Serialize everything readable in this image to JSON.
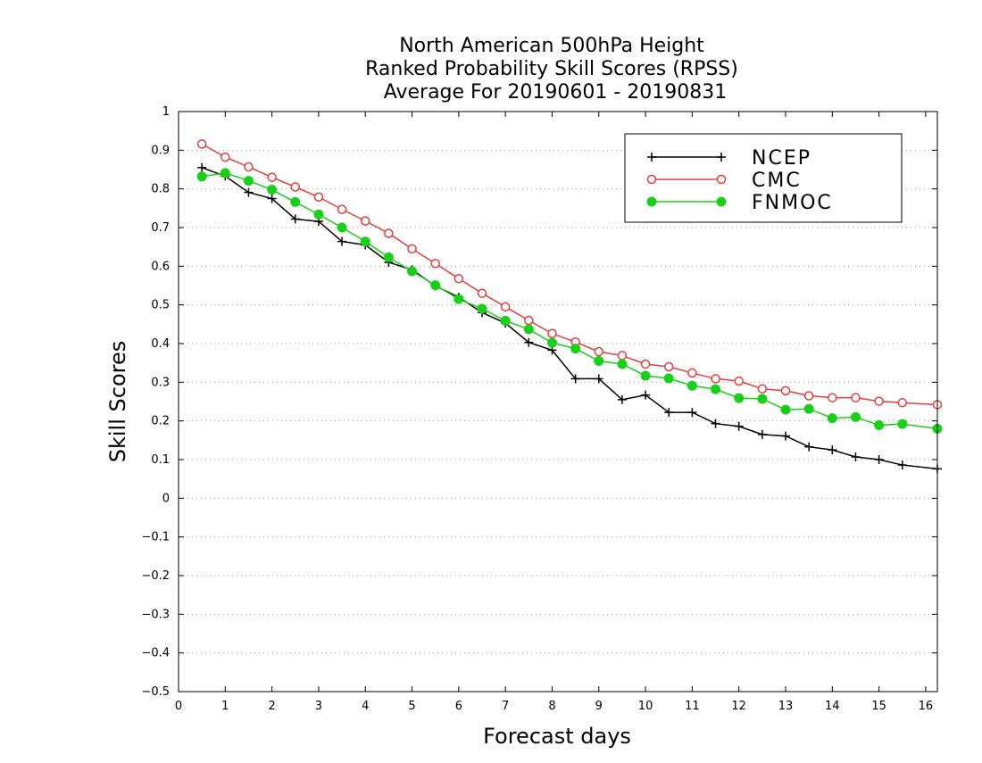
{
  "chart_data": {
    "type": "line",
    "title_lines": [
      "North American 500hPa Height",
      "Ranked Probability Skill Scores (RPSS)",
      "Average For 20190601 - 20190831"
    ],
    "xlabel": "Forecast days",
    "ylabel": "Skill Scores",
    "xlim": [
      0,
      16.25
    ],
    "ylim": [
      -0.5,
      1
    ],
    "x_ticks": [
      "0",
      "1",
      "2",
      "3",
      "4",
      "5",
      "6",
      "7",
      "8",
      "9",
      "10",
      "11",
      "12",
      "13",
      "14",
      "15",
      "16"
    ],
    "y_ticks": [
      "−0.5",
      "−0.4",
      "−0.3",
      "−0.2",
      "−0.1",
      "0",
      "0.1",
      "0.2",
      "0.3",
      "0.4",
      "0.5",
      "0.6",
      "0.7",
      "0.8",
      "0.9",
      "1"
    ],
    "grid": "horizontal dotted",
    "legend_position": "top-right",
    "x": [
      0.5,
      1,
      1.5,
      2,
      2.5,
      3,
      3.5,
      4,
      4.5,
      5,
      5.5,
      6,
      6.5,
      7,
      7.5,
      8,
      8.5,
      9,
      9.5,
      10,
      10.5,
      11,
      11.5,
      12,
      12.5,
      13,
      13.5,
      14,
      14.5,
      15,
      15.5,
      16.25
    ],
    "series": [
      {
        "name": "NCEP",
        "color": "#000000",
        "marker": "plus",
        "values": [
          0.855,
          0.833,
          0.791,
          0.775,
          0.722,
          0.716,
          0.664,
          0.655,
          0.61,
          0.591,
          0.549,
          0.52,
          0.48,
          0.453,
          0.403,
          0.383,
          0.309,
          0.309,
          0.255,
          0.267,
          0.222,
          0.222,
          0.193,
          0.186,
          0.165,
          0.161,
          0.133,
          0.125,
          0.107,
          0.1,
          0.086,
          0.076
        ]
      },
      {
        "name": "CMC",
        "color": "#e83c3c",
        "marker": "open-circle",
        "values": [
          0.916,
          0.882,
          0.857,
          0.83,
          0.805,
          0.779,
          0.747,
          0.717,
          0.685,
          0.645,
          0.607,
          0.568,
          0.53,
          0.495,
          0.46,
          0.426,
          0.404,
          0.379,
          0.369,
          0.347,
          0.34,
          0.324,
          0.309,
          0.303,
          0.283,
          0.278,
          0.265,
          0.26,
          0.26,
          0.251,
          0.247,
          0.242
        ]
      },
      {
        "name": "FNMOC",
        "color": "#18d018",
        "marker": "filled-circle",
        "values": [
          0.832,
          0.841,
          0.821,
          0.798,
          0.766,
          0.734,
          0.7,
          0.664,
          0.623,
          0.587,
          0.551,
          0.515,
          0.49,
          0.459,
          0.437,
          0.402,
          0.387,
          0.355,
          0.347,
          0.317,
          0.31,
          0.291,
          0.282,
          0.259,
          0.257,
          0.229,
          0.231,
          0.207,
          0.21,
          0.189,
          0.192,
          0.18
        ]
      }
    ]
  }
}
